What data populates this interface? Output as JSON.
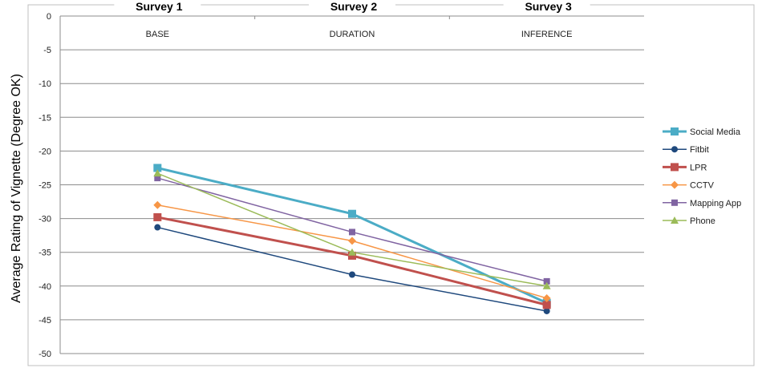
{
  "chart_data": {
    "type": "line",
    "categories": [
      "BASE",
      "DURATION",
      "INFERENCE"
    ],
    "survey_labels": [
      "Survey 1",
      "Survey 2",
      "Survey 3"
    ],
    "ylabel": "Average Rating of Vignette (Degree OK)",
    "xlabel": "",
    "ylim": [
      -50,
      0
    ],
    "yticks": [
      0,
      -5,
      -10,
      -15,
      -20,
      -25,
      -30,
      -35,
      -40,
      -45,
      -50
    ],
    "grid": true,
    "legend_position": "right",
    "series": [
      {
        "name": "Social Media",
        "values": [
          -22.5,
          -29.3,
          -42.5
        ],
        "color": "#4bacc6",
        "marker": "square",
        "width": 3
      },
      {
        "name": "Fitbit",
        "values": [
          -31.3,
          -38.3,
          -43.7
        ],
        "color": "#1f497d",
        "marker": "circle",
        "width": 1.5
      },
      {
        "name": "LPR",
        "values": [
          -29.8,
          -35.5,
          -42.8
        ],
        "color": "#c0504d",
        "marker": "square",
        "width": 3
      },
      {
        "name": "CCTV",
        "values": [
          -28.0,
          -33.3,
          -41.8
        ],
        "color": "#f79646",
        "marker": "diamond",
        "width": 1.5
      },
      {
        "name": "Mapping App",
        "values": [
          -24.0,
          -32.0,
          -39.3
        ],
        "color": "#8064a2",
        "marker": "square",
        "width": 1.5
      },
      {
        "name": "Phone",
        "values": [
          -23.3,
          -35.0,
          -40.0
        ],
        "color": "#9bbb59",
        "marker": "triangle",
        "width": 1.5
      }
    ]
  }
}
